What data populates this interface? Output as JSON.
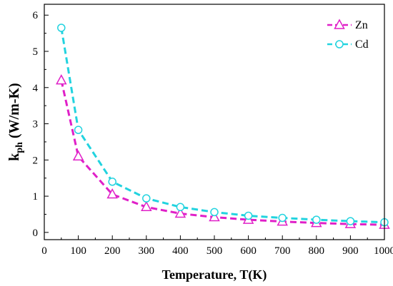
{
  "chart_data": {
    "type": "line",
    "x": [
      50,
      100,
      200,
      300,
      400,
      500,
      600,
      700,
      800,
      900,
      1000
    ],
    "series": [
      {
        "name": "Zn",
        "marker": "triangle",
        "color": "#e020c8",
        "values": [
          4.2,
          2.1,
          1.05,
          0.7,
          0.52,
          0.42,
          0.35,
          0.3,
          0.26,
          0.23,
          0.21
        ]
      },
      {
        "name": "Cd",
        "marker": "circle",
        "color": "#22d3df",
        "values": [
          5.65,
          2.83,
          1.4,
          0.94,
          0.7,
          0.56,
          0.46,
          0.4,
          0.35,
          0.31,
          0.28
        ]
      }
    ],
    "xlabel": "Temperature, T(K)",
    "ylabel_main": "k",
    "ylabel_sub": "ph",
    "ylabel_rest": " (W/m-K)",
    "xlim": [
      0,
      1000
    ],
    "ylim": [
      -0.2,
      6.3
    ],
    "xticks": [
      0,
      100,
      200,
      300,
      400,
      500,
      600,
      700,
      800,
      900,
      1000
    ],
    "yticks": [
      0,
      1,
      2,
      3,
      4,
      5,
      6
    ],
    "grid": false,
    "legend_position": "top-right"
  }
}
